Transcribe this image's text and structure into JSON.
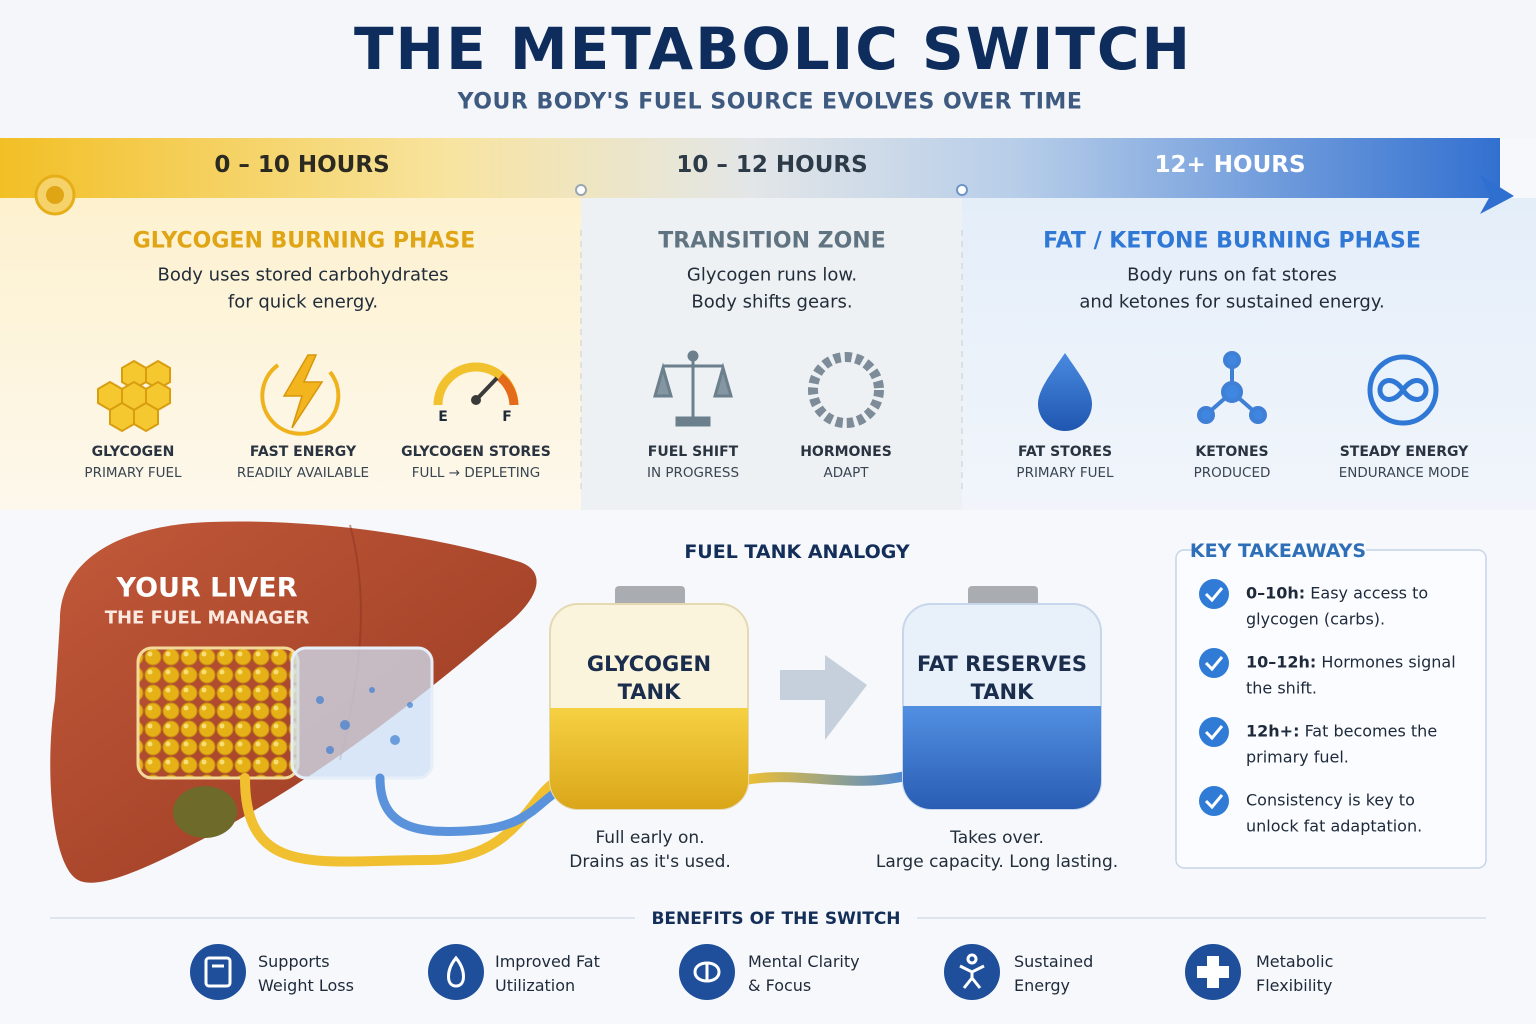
{
  "header": {
    "title": "THE METABOLIC SWITCH",
    "subtitle": "YOUR BODY'S FUEL SOURCE EVOLVES OVER TIME"
  },
  "timeline": {
    "phases": [
      {
        "range": "0 – 10 HOURS",
        "title": "GLYCOGEN BURNING PHASE",
        "description": [
          "Body uses stored carbohydrates",
          "for quick energy."
        ],
        "icons": [
          {
            "label": "GLYCOGEN",
            "sublabel": "PRIMARY FUEL"
          },
          {
            "label": "FAST ENERGY",
            "sublabel": "READILY AVAILABLE"
          },
          {
            "label": "GLYCOGEN STORES",
            "sublabel": "FULL → DEPLETING",
            "gauge_labels": [
              "E",
              "F"
            ]
          }
        ]
      },
      {
        "range": "10 – 12 HOURS",
        "title": "TRANSITION ZONE",
        "description": [
          "Glycogen runs low.",
          "Body shifts gears."
        ],
        "icons": [
          {
            "label": "FUEL SHIFT",
            "sublabel": "IN PROGRESS"
          },
          {
            "label": "HORMONES",
            "sublabel": "ADAPT"
          }
        ]
      },
      {
        "range": "12+ HOURS",
        "title": "FAT / KETONE BURNING PHASE",
        "description": [
          "Body runs on fat stores",
          "and ketones for sustained energy."
        ],
        "icons": [
          {
            "label": "FAT STORES",
            "sublabel": "PRIMARY FUEL"
          },
          {
            "label": "KETONES",
            "sublabel": "PRODUCED"
          },
          {
            "label": "STEADY ENERGY",
            "sublabel": "ENDURANCE MODE"
          }
        ]
      }
    ]
  },
  "liver": {
    "title": "YOUR LIVER",
    "subtitle": "THE FUEL MANAGER"
  },
  "analogy": {
    "title": "FUEL TANK ANALOGY",
    "tanks": [
      {
        "label": [
          "GLYCOGEN",
          "TANK"
        ],
        "caption": [
          "Full early on.",
          "Drains as it's used."
        ]
      },
      {
        "label": [
          "FAT RESERVES",
          "TANK"
        ],
        "caption": [
          "Takes over.",
          "Large capacity. Long lasting."
        ]
      }
    ]
  },
  "takeaways": {
    "title": "KEY TAKEAWAYS",
    "items": [
      {
        "lead": "0–10h:",
        "lines": [
          "Easy access to",
          "glycogen (carbs)."
        ]
      },
      {
        "lead": "10–12h:",
        "lines": [
          "Hormones signal",
          "the shift."
        ]
      },
      {
        "lead": "12h+:",
        "lines": [
          "Fat becomes the",
          "primary fuel."
        ]
      },
      {
        "lead": "",
        "lines": [
          "Consistency is key to",
          "unlock fat adaptation."
        ]
      }
    ]
  },
  "benefits": {
    "title": "BENEFITS OF THE SWITCH",
    "items": [
      [
        "Supports",
        "Weight Loss"
      ],
      [
        "Improved Fat",
        "Utilization"
      ],
      [
        "Mental Clarity",
        "& Focus"
      ],
      [
        "Sustained",
        "Energy"
      ],
      [
        "Metabolic",
        "Flexibility"
      ]
    ]
  }
}
